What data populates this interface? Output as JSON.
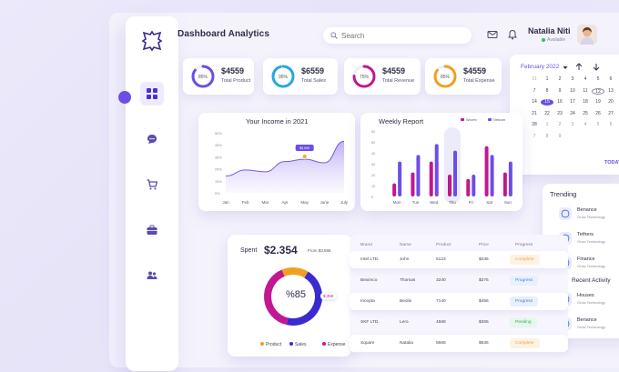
{
  "header": {
    "title": "Dashboard Analytics",
    "search_placeholder": "Search",
    "user_name": "Natalia Niti",
    "user_status": "Available"
  },
  "sidebar": {
    "items": [
      {
        "name": "dashboard",
        "icon": "grid-icon",
        "active": true
      },
      {
        "name": "messages",
        "icon": "chat-icon"
      },
      {
        "name": "cart",
        "icon": "cart-icon"
      },
      {
        "name": "briefcase",
        "icon": "briefcase-icon"
      },
      {
        "name": "users",
        "icon": "users-icon"
      }
    ]
  },
  "stats": [
    {
      "value": "$4559",
      "label": "Total Product",
      "pct": "85%",
      "fraction": 0.85,
      "color": "#6d4de8"
    },
    {
      "value": "$6559",
      "label": "Total Sales",
      "pct": "95%",
      "fraction": 0.95,
      "color": "#25a8e0"
    },
    {
      "value": "$4559",
      "label": "Total Revenue",
      "pct": "75%",
      "fraction": 0.75,
      "color": "#c01890"
    },
    {
      "value": "$4559",
      "label": "Total Expense",
      "pct": "85%",
      "fraction": 0.85,
      "color": "#f0a020"
    }
  ],
  "calendar": {
    "month": "February 2022",
    "days": [
      "31",
      "1",
      "2",
      "3",
      "4",
      "5",
      "6",
      "7",
      "8",
      "9",
      "10",
      "11",
      "12",
      "13",
      "14",
      "15",
      "16",
      "17",
      "18",
      "19",
      "20",
      "21",
      "22",
      "23",
      "24",
      "25",
      "26",
      "27",
      "28",
      "1",
      "2",
      "3",
      "4",
      "5",
      "6",
      "7",
      "8",
      "9"
    ],
    "selected": "15",
    "outlined": "12",
    "today_label": "TODAY"
  },
  "income": {
    "title": "Your Income in 2021",
    "tooltip": "$5,000",
    "chart_data": {
      "type": "area",
      "categories": [
        "Jan",
        "Feb",
        "Mar",
        "Apr",
        "May",
        "June",
        "July"
      ],
      "values": [
        28,
        38,
        35,
        52,
        56,
        50,
        86
      ],
      "ylabels": [
        "0%",
        "15%",
        "25%",
        "35%",
        "45%",
        "50%"
      ],
      "ylim": [
        0,
        100
      ]
    }
  },
  "weekly": {
    "title": "Weekly Report",
    "legend": [
      "Woven",
      "Netcom"
    ],
    "legend_colors": [
      "#c01890",
      "#6d4de8"
    ],
    "chart_data": {
      "type": "bar",
      "categories": [
        "Mon",
        "Tue",
        "Wed",
        "Thu",
        "Fri",
        "Sat",
        "Sun"
      ],
      "ylabels": [
        "0",
        "10",
        "20",
        "30",
        "40",
        "50",
        "60"
      ],
      "ylim": [
        0,
        60
      ],
      "series": [
        {
          "name": "Woven",
          "values": [
            12,
            22,
            32,
            20,
            16,
            46,
            22
          ],
          "color": "#c01890"
        },
        {
          "name": "Netcom",
          "values": [
            32,
            38,
            48,
            42,
            20,
            38,
            32
          ],
          "color": "#6d4de8"
        }
      ],
      "highlight": "Thu"
    }
  },
  "trending": {
    "title": "Trending",
    "items": [
      {
        "name": "Benance",
        "sub": "Grow Technology"
      },
      {
        "name": "Tethers",
        "sub": "Grow Technology"
      },
      {
        "name": "Finance",
        "sub": "Grow Technology"
      }
    ],
    "recent_title": "Recent Activity",
    "recent": [
      {
        "name": "Houses",
        "sub": "Grow Technology"
      },
      {
        "name": "Benance",
        "sub": "Grow Technology"
      }
    ]
  },
  "spent": {
    "title": "Spent",
    "amount": "$2.354",
    "from": "From $3,586",
    "center": "%85",
    "callout": "$.350",
    "chart_data": {
      "type": "pie",
      "categories": [
        "Product",
        "Sales",
        "Expense"
      ],
      "values": [
        15,
        45,
        40
      ],
      "colors": [
        "#f0a020",
        "#3a2ad0",
        "#c01890"
      ]
    }
  },
  "table": {
    "headers": [
      "Brand",
      "Name",
      "Product",
      "Price",
      "Progress"
    ],
    "rows": [
      {
        "brand": "Intel LTD.",
        "name": "John",
        "product": "5123",
        "price": "$235",
        "status": "Complete"
      },
      {
        "brand": "Beximco",
        "name": "Thomas",
        "product": "3240",
        "price": "$275",
        "status": "Progress"
      },
      {
        "brand": "Incepta",
        "name": "Beolis",
        "product": "7140",
        "price": "$456",
        "status": "Progress"
      },
      {
        "brand": "SKF LTD.",
        "name": "Lero",
        "product": "4569",
        "price": "$365",
        "status": "Pending"
      },
      {
        "brand": "Square",
        "name": "Natalia",
        "product": "5665",
        "price": "$536",
        "status": "Complete"
      }
    ]
  }
}
